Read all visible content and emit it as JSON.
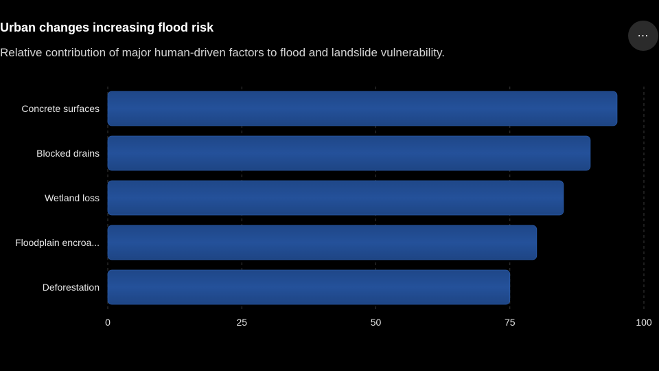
{
  "header": {
    "title": "Urban changes increasing flood risk",
    "subtitle": "Relative contribution of major human-driven factors to flood and landslide vulnerability.",
    "more_button_label": "⋯",
    "more_icon": "more-horizontal-icon"
  },
  "chart_data": {
    "type": "bar",
    "orientation": "horizontal",
    "categories": [
      "Concrete surfaces",
      "Blocked drains",
      "Wetland loss",
      "Floodplain encroa...",
      "Deforestation"
    ],
    "values": [
      95,
      90,
      85,
      80,
      75
    ],
    "xlim": [
      0,
      100
    ],
    "xticks": [
      0,
      25,
      50,
      75,
      100
    ],
    "xtick_labels": [
      "0",
      "25",
      "50",
      "75",
      "100"
    ],
    "grid": "vertical-dashed",
    "bar_color": "#1f4a8e",
    "bar_color_top": "#234f95"
  }
}
